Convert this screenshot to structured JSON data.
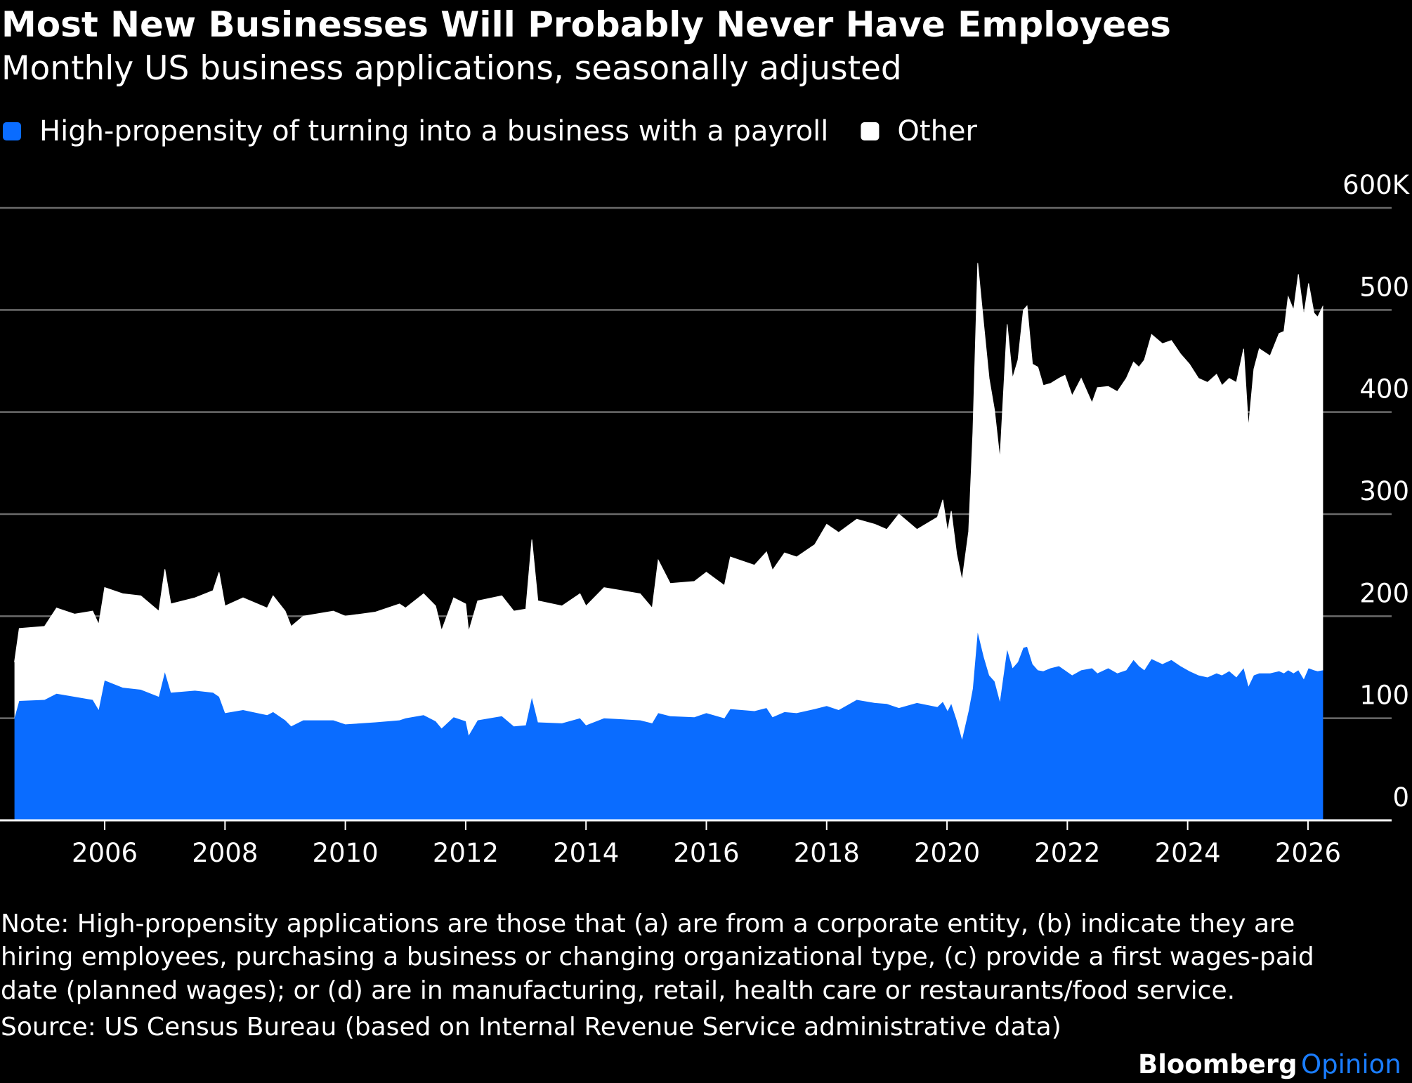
{
  "chart_data": {
    "type": "stacked_area",
    "title": "Most New Businesses Will Probably Never Have Employees",
    "subtitle": "Monthly US business applications, seasonally adjusted",
    "x": [
      2004.5,
      2004.58,
      2005.0,
      2005.2,
      2005.5,
      2005.8,
      2005.9,
      2006.0,
      2006.3,
      2006.6,
      2006.9,
      2007.0,
      2007.1,
      2007.5,
      2007.8,
      2007.9,
      2008.0,
      2008.3,
      2008.7,
      2008.8,
      2009.0,
      2009.1,
      2009.3,
      2009.8,
      2010.0,
      2010.5,
      2010.9,
      2011.0,
      2011.3,
      2011.5,
      2011.6,
      2011.8,
      2012.0,
      2012.05,
      2012.2,
      2012.6,
      2012.8,
      2013.0,
      2013.1,
      2013.2,
      2013.6,
      2013.9,
      2014.0,
      2014.3,
      2014.9,
      2015.1,
      2015.2,
      2015.4,
      2015.8,
      2016.0,
      2016.3,
      2016.4,
      2016.8,
      2017.0,
      2017.1,
      2017.3,
      2017.5,
      2017.8,
      2018.0,
      2018.2,
      2018.5,
      2018.8,
      2019.0,
      2019.2,
      2019.5,
      2019.84,
      2019.93,
      2020.01,
      2020.07,
      2020.16,
      2020.25,
      2020.36,
      2020.43,
      2020.51,
      2020.61,
      2020.7,
      2020.79,
      2020.88,
      2021.0,
      2021.09,
      2021.18,
      2021.27,
      2021.33,
      2021.42,
      2021.51,
      2021.6,
      2021.72,
      2021.86,
      2021.96,
      2022.08,
      2022.23,
      2022.41,
      2022.5,
      2022.68,
      2022.83,
      2022.98,
      2023.1,
      2023.19,
      2023.28,
      2023.4,
      2023.58,
      2023.73,
      2023.88,
      2024.03,
      2024.18,
      2024.33,
      2024.48,
      2024.57,
      2024.69,
      2024.81,
      2024.93,
      2025.01,
      2025.1,
      2025.19,
      2025.37,
      2025.52,
      2025.6,
      2025.67,
      2025.76,
      2025.84,
      2025.93,
      2026.01,
      2026.1,
      2026.16,
      2026.25
    ],
    "series": [
      {
        "name": "High-propensity of turning into a business with a payroll",
        "color": "#0a6cff",
        "values": [
          100,
          117,
          118,
          124,
          121,
          118,
          108,
          137,
          130,
          128,
          121,
          145,
          125,
          127,
          125,
          121,
          105,
          108,
          103,
          106,
          98,
          92,
          98,
          98,
          94,
          96,
          98,
          100,
          103,
          97,
          90,
          101,
          97,
          83,
          98,
          102,
          92,
          93,
          120,
          96,
          95,
          100,
          93,
          100,
          98,
          95,
          105,
          102,
          101,
          105,
          100,
          109,
          107,
          110,
          101,
          106,
          105,
          109,
          112,
          108,
          118,
          115,
          114,
          110,
          115,
          111,
          116,
          107,
          114,
          98,
          79,
          107,
          129,
          184,
          160,
          142,
          136,
          116,
          167,
          149,
          155,
          169,
          170,
          153,
          147,
          146,
          149,
          151,
          147,
          142,
          147,
          149,
          144,
          149,
          144,
          147,
          157,
          151,
          147,
          158,
          153,
          157,
          151,
          146,
          142,
          140,
          144,
          142,
          146,
          140,
          149,
          131,
          142,
          144,
          144,
          146,
          144,
          147,
          144,
          147,
          138,
          149,
          147,
          146,
          147
        ]
      },
      {
        "name": "Other",
        "color": "#ffffff",
        "values": [
          55,
          71,
          72,
          84,
          81,
          87,
          84,
          91,
          92,
          92,
          84,
          101,
          87,
          91,
          100,
          122,
          105,
          110,
          105,
          114,
          107,
          98,
          102,
          107,
          106,
          108,
          114,
          108,
          119,
          113,
          96,
          117,
          115,
          102,
          117,
          118,
          113,
          114,
          155,
          119,
          115,
          122,
          117,
          128,
          124,
          113,
          150,
          130,
          133,
          138,
          130,
          149,
          143,
          153,
          144,
          156,
          153,
          161,
          178,
          174,
          177,
          175,
          171,
          190,
          170,
          186,
          198,
          176,
          189,
          163,
          156,
          176,
          251,
          362,
          326,
          291,
          266,
          238,
          319,
          284,
          296,
          331,
          334,
          294,
          297,
          280,
          279,
          282,
          289,
          274,
          286,
          260,
          280,
          276,
          276,
          286,
          292,
          293,
          304,
          318,
          314,
          313,
          306,
          301,
          291,
          289,
          293,
          284,
          287,
          289,
          313,
          254,
          300,
          318,
          311,
          331,
          335,
          366,
          356,
          388,
          357,
          377,
          350,
          347,
          357
        ]
      }
    ],
    "xlim": [
      2004.26,
      2027.39
    ],
    "xticks": [
      2006,
      2008,
      2010,
      2012,
      2014,
      2016,
      2018,
      2020,
      2022,
      2024,
      2026
    ],
    "ylim": [
      0,
      600
    ],
    "yticks": [
      0,
      100,
      200,
      300,
      400,
      500,
      {
        "value": 600,
        "label": "600K"
      }
    ],
    "grid": true,
    "legend": "top-left",
    "note": [
      "Note: High-propensity applications are those that (a) are from a corporate entity, (b) indicate they are",
      "hiring employees, purchasing a business or changing organizational type, (c) provide a first wages-paid",
      "date (planned wages); or (d) are in manufacturing, retail, health care or restaurants/food service."
    ],
    "source": "Source: US Census Bureau (based on Internal Revenue Service administrative data)",
    "brand": [
      "Bloomberg",
      "Opinion"
    ]
  }
}
